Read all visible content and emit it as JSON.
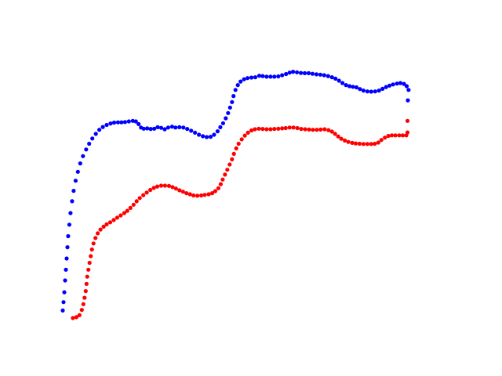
{
  "chart_data": {
    "type": "scatter",
    "title": "",
    "xlabel": "",
    "ylabel": "",
    "axes_visible": false,
    "grid": false,
    "legend": "none",
    "xlim": [
      0,
      100
    ],
    "ylim": [
      0,
      100
    ],
    "series": [
      {
        "color": "#0000ff",
        "points": [
          [
            0.0,
            8.3
          ],
          [
            0.2,
            11.2
          ],
          [
            0.4,
            14.6
          ],
          [
            0.6,
            18.7
          ],
          [
            0.8,
            22.4
          ],
          [
            1.0,
            26.3
          ],
          [
            1.2,
            30.2
          ],
          [
            1.4,
            34.0
          ],
          [
            1.7,
            38.0
          ],
          [
            2.0,
            42.0
          ],
          [
            2.4,
            46.1
          ],
          [
            2.8,
            49.7
          ],
          [
            3.3,
            53.2
          ],
          [
            3.9,
            56.3
          ],
          [
            4.5,
            59.2
          ],
          [
            5.2,
            61.7
          ],
          [
            6.0,
            64.0
          ],
          [
            6.8,
            66.0
          ],
          [
            7.6,
            67.8
          ],
          [
            8.5,
            69.4
          ],
          [
            9.4,
            70.8
          ],
          [
            10.3,
            71.8
          ],
          [
            11.3,
            72.5
          ],
          [
            12.3,
            73.0
          ],
          [
            13.2,
            73.3
          ],
          [
            14.2,
            73.4
          ],
          [
            15.1,
            73.4
          ],
          [
            16.0,
            73.5
          ],
          [
            17.0,
            73.7
          ],
          [
            18.0,
            73.9
          ],
          [
            18.8,
            73.7
          ],
          [
            19.5,
            72.8
          ],
          [
            20.1,
            71.6
          ],
          [
            20.8,
            71.2
          ],
          [
            21.7,
            71.3
          ],
          [
            22.6,
            71.1
          ],
          [
            23.5,
            71.2
          ],
          [
            24.4,
            71.7
          ],
          [
            25.3,
            71.5
          ],
          [
            26.2,
            71.0
          ],
          [
            27.1,
            71.6
          ],
          [
            28.1,
            71.9
          ],
          [
            29.0,
            71.6
          ],
          [
            30.0,
            71.7
          ],
          [
            31.0,
            71.6
          ],
          [
            32.0,
            71.1
          ],
          [
            33.0,
            70.5
          ],
          [
            34.0,
            69.8
          ],
          [
            35.0,
            69.1
          ],
          [
            36.0,
            68.6
          ],
          [
            37.0,
            68.3
          ],
          [
            38.0,
            68.4
          ],
          [
            38.9,
            69.1
          ],
          [
            39.8,
            70.3
          ],
          [
            40.5,
            71.7
          ],
          [
            41.2,
            73.1
          ],
          [
            41.9,
            74.8
          ],
          [
            42.5,
            76.6
          ],
          [
            43.0,
            78.5
          ],
          [
            43.5,
            80.4
          ],
          [
            43.9,
            82.5
          ],
          [
            44.4,
            84.6
          ],
          [
            45.0,
            86.3
          ],
          [
            45.7,
            87.5
          ],
          [
            46.6,
            88.3
          ],
          [
            47.5,
            88.7
          ],
          [
            48.5,
            88.9
          ],
          [
            49.5,
            89.0
          ],
          [
            50.5,
            89.5
          ],
          [
            51.4,
            89.4
          ],
          [
            52.4,
            89.2
          ],
          [
            53.4,
            89.2
          ],
          [
            54.4,
            89.2
          ],
          [
            55.4,
            89.3
          ],
          [
            56.4,
            89.7
          ],
          [
            57.4,
            90.1
          ],
          [
            58.3,
            90.6
          ],
          [
            59.2,
            90.9
          ],
          [
            60.2,
            90.7
          ],
          [
            61.2,
            90.5
          ],
          [
            62.2,
            90.4
          ],
          [
            63.2,
            90.4
          ],
          [
            64.2,
            90.2
          ],
          [
            65.2,
            90.0
          ],
          [
            66.2,
            89.9
          ],
          [
            67.2,
            89.7
          ],
          [
            68.2,
            89.4
          ],
          [
            69.2,
            89.0
          ],
          [
            70.1,
            88.5
          ],
          [
            71.0,
            87.8
          ],
          [
            71.9,
            87.0
          ],
          [
            72.8,
            86.3
          ],
          [
            73.7,
            85.9
          ],
          [
            74.6,
            85.7
          ],
          [
            75.5,
            85.5
          ],
          [
            76.4,
            84.9
          ],
          [
            77.3,
            84.4
          ],
          [
            78.3,
            84.1
          ],
          [
            79.3,
            84.0
          ],
          [
            80.3,
            84.1
          ],
          [
            81.3,
            84.4
          ],
          [
            82.2,
            85.0
          ],
          [
            83.1,
            85.6
          ],
          [
            84.0,
            86.1
          ],
          [
            84.9,
            86.5
          ],
          [
            85.9,
            86.8
          ],
          [
            86.8,
            87.0
          ],
          [
            87.7,
            86.7
          ],
          [
            88.4,
            85.9
          ],
          [
            88.9,
            84.6
          ],
          [
            88.7,
            81.0
          ]
        ]
      },
      {
        "color": "#ff0000",
        "points": [
          [
            2.6,
            5.7
          ],
          [
            3.5,
            6.0
          ],
          [
            4.3,
            6.7
          ],
          [
            4.9,
            8.5
          ],
          [
            5.3,
            10.5
          ],
          [
            5.6,
            12.7
          ],
          [
            5.9,
            15.0
          ],
          [
            6.1,
            17.5
          ],
          [
            6.3,
            20.0
          ],
          [
            6.6,
            22.4
          ],
          [
            6.9,
            24.8
          ],
          [
            7.2,
            27.1
          ],
          [
            7.5,
            29.4
          ],
          [
            7.9,
            31.5
          ],
          [
            8.4,
            33.4
          ],
          [
            9.0,
            35.0
          ],
          [
            9.7,
            36.3
          ],
          [
            10.5,
            37.3
          ],
          [
            11.3,
            38.1
          ],
          [
            12.2,
            38.8
          ],
          [
            13.1,
            39.6
          ],
          [
            14.0,
            40.4
          ],
          [
            14.9,
            41.2
          ],
          [
            15.8,
            42.0
          ],
          [
            16.6,
            42.8
          ],
          [
            17.4,
            43.8
          ],
          [
            18.2,
            44.9
          ],
          [
            19.0,
            46.1
          ],
          [
            19.8,
            47.2
          ],
          [
            20.7,
            48.2
          ],
          [
            21.6,
            49.1
          ],
          [
            22.5,
            50.0
          ],
          [
            23.4,
            50.7
          ],
          [
            24.3,
            51.2
          ],
          [
            25.3,
            51.5
          ],
          [
            26.3,
            51.5
          ],
          [
            27.3,
            51.4
          ],
          [
            28.2,
            51.0
          ],
          [
            29.1,
            50.5
          ],
          [
            30.0,
            49.9
          ],
          [
            30.9,
            49.4
          ],
          [
            31.8,
            48.9
          ],
          [
            32.7,
            48.5
          ],
          [
            33.6,
            48.1
          ],
          [
            34.6,
            48.0
          ],
          [
            35.6,
            48.1
          ],
          [
            36.5,
            48.3
          ],
          [
            37.5,
            48.5
          ],
          [
            38.4,
            48.9
          ],
          [
            39.2,
            49.6
          ],
          [
            40.0,
            50.6
          ],
          [
            40.6,
            52.0
          ],
          [
            41.1,
            53.6
          ],
          [
            41.7,
            55.3
          ],
          [
            42.3,
            57.0
          ],
          [
            42.9,
            58.8
          ],
          [
            43.5,
            60.6
          ],
          [
            44.0,
            62.5
          ],
          [
            44.6,
            64.4
          ],
          [
            45.2,
            66.0
          ],
          [
            46.0,
            67.5
          ],
          [
            46.8,
            68.8
          ],
          [
            47.6,
            69.8
          ],
          [
            48.5,
            70.6
          ],
          [
            49.4,
            71.0
          ],
          [
            50.4,
            71.2
          ],
          [
            51.4,
            71.1
          ],
          [
            52.4,
            71.0
          ],
          [
            53.4,
            71.0
          ],
          [
            54.4,
            71.1
          ],
          [
            55.4,
            71.2
          ],
          [
            56.4,
            71.3
          ],
          [
            57.3,
            71.4
          ],
          [
            58.3,
            71.6
          ],
          [
            59.3,
            71.6
          ],
          [
            60.3,
            71.4
          ],
          [
            61.3,
            71.1
          ],
          [
            62.3,
            71.0
          ],
          [
            63.3,
            70.9
          ],
          [
            64.3,
            70.8
          ],
          [
            65.3,
            70.8
          ],
          [
            66.3,
            70.9
          ],
          [
            67.3,
            71.0
          ],
          [
            68.3,
            70.7
          ],
          [
            69.2,
            70.2
          ],
          [
            70.0,
            69.4
          ],
          [
            70.8,
            68.5
          ],
          [
            71.6,
            67.7
          ],
          [
            72.5,
            67.1
          ],
          [
            73.4,
            66.6
          ],
          [
            74.4,
            66.3
          ],
          [
            75.3,
            66.1
          ],
          [
            76.3,
            66.0
          ],
          [
            77.3,
            65.9
          ],
          [
            78.3,
            65.9
          ],
          [
            79.3,
            65.9
          ],
          [
            80.2,
            66.0
          ],
          [
            81.1,
            66.4
          ],
          [
            81.9,
            67.3
          ],
          [
            82.8,
            68.1
          ],
          [
            83.7,
            68.7
          ],
          [
            84.6,
            68.9
          ],
          [
            85.5,
            68.9
          ],
          [
            86.5,
            68.9
          ],
          [
            87.4,
            68.9
          ],
          [
            88.3,
            68.9
          ],
          [
            88.6,
            69.9
          ],
          [
            88.6,
            73.9
          ]
        ]
      }
    ]
  }
}
